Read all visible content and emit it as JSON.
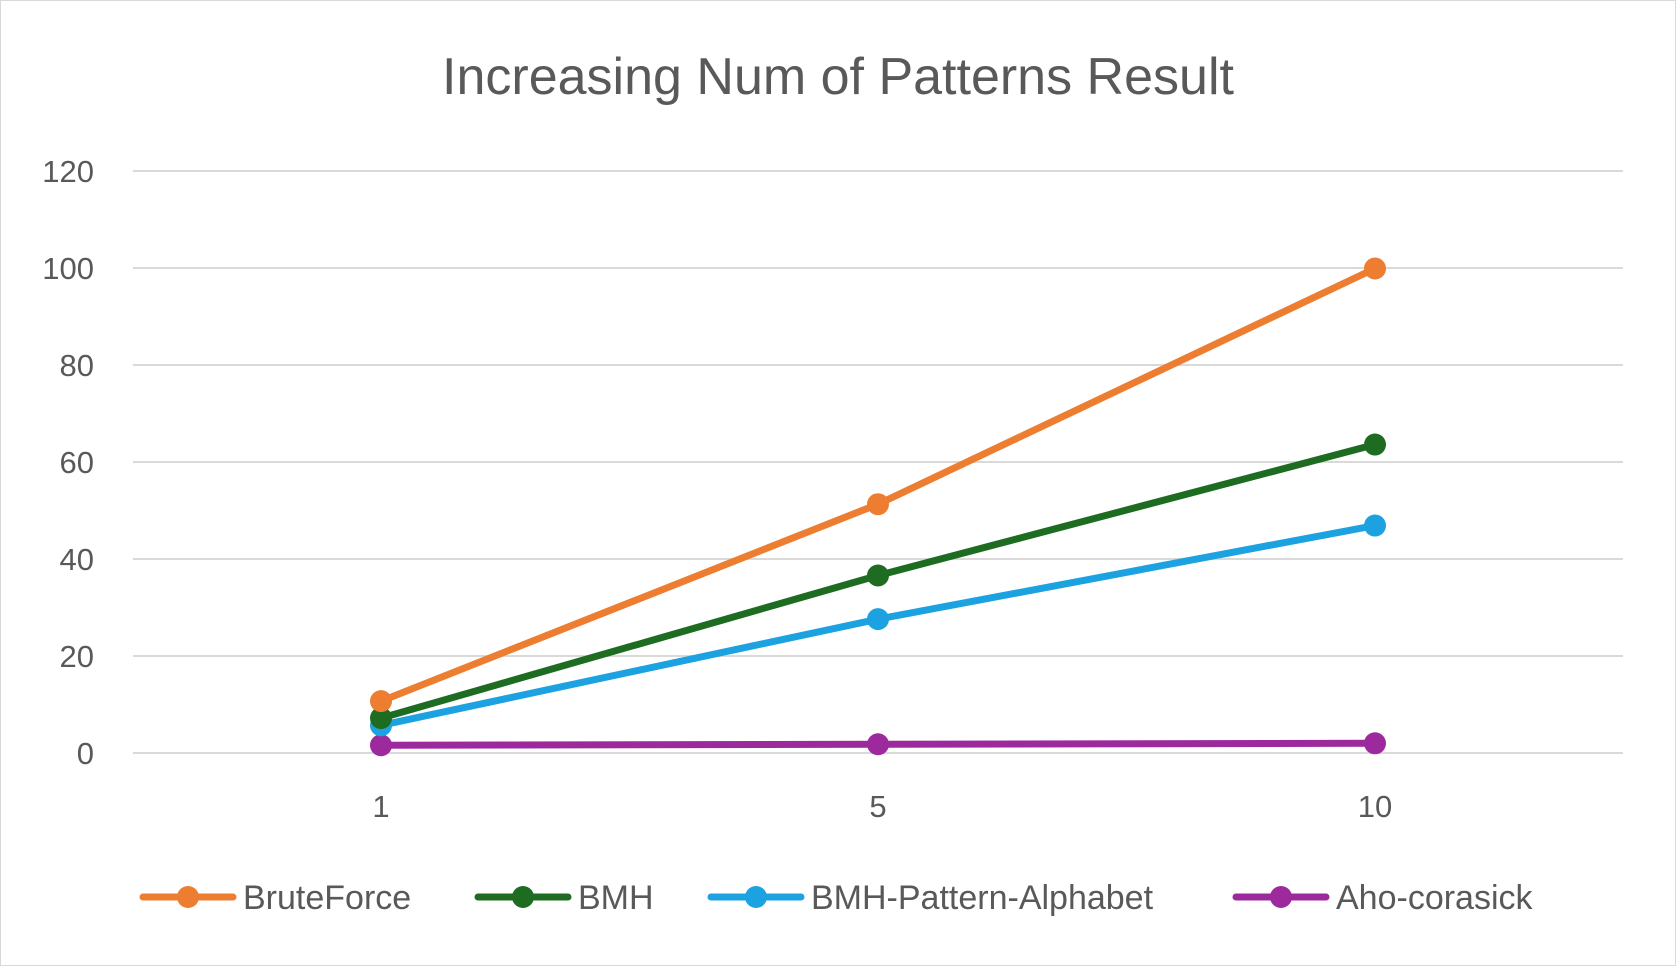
{
  "chart_data": {
    "type": "line",
    "title": "Increasing Num of Patterns Result",
    "xlabel": "",
    "ylabel": "",
    "categories": [
      "1",
      "5",
      "10"
    ],
    "ylim": [
      0,
      120
    ],
    "yticks": [
      0,
      20,
      40,
      60,
      80,
      100,
      120
    ],
    "grid": true,
    "legend_position": "bottom",
    "series": [
      {
        "name": "BruteForce",
        "color": "#ED7D31",
        "values": [
          10.7,
          51.3,
          99.9
        ]
      },
      {
        "name": "BMH",
        "color": "#1E6B22",
        "values": [
          7.2,
          36.6,
          63.6
        ]
      },
      {
        "name": "BMH-Pattern-Alphabet",
        "color": "#1CA2E0",
        "values": [
          5.7,
          27.6,
          46.9
        ]
      },
      {
        "name": "Aho-corasick",
        "color": "#9C2A9C",
        "values": [
          1.6,
          1.8,
          2.0
        ]
      }
    ]
  }
}
